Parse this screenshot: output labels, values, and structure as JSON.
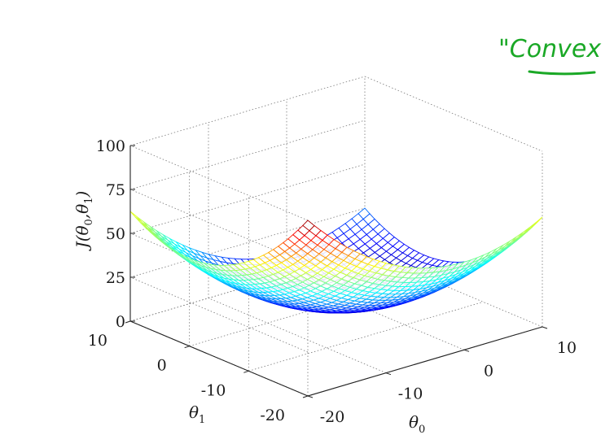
{
  "chart_data": {
    "type": "surface",
    "function": "J = theta0^2/8 + theta1^2/8",
    "xlabel": "θ0",
    "ylabel": "θ1",
    "zlabel": "J(θ0,θ1)",
    "x_ticks": [
      "-20",
      "-10",
      "0",
      "10"
    ],
    "y_ticks": [
      "-20",
      "-10",
      "0",
      "10"
    ],
    "z_ticks": [
      "0",
      "25",
      "50",
      "75",
      "100"
    ],
    "xlim": [
      -20,
      10
    ],
    "ylim": [
      -20,
      10
    ],
    "zlim": [
      0,
      100
    ],
    "colormap": "jet",
    "grid": true,
    "corner_values": [
      {
        "theta0": -20,
        "theta1": -20,
        "J": 100
      },
      {
        "theta0": -20,
        "theta1": 10,
        "J": 62.5
      },
      {
        "theta0": 10,
        "theta1": -20,
        "J": 62.5
      },
      {
        "theta0": 10,
        "theta1": 10,
        "J": 25
      }
    ]
  },
  "annotation": {
    "text": "\"Convex",
    "color": "#1aa826"
  }
}
